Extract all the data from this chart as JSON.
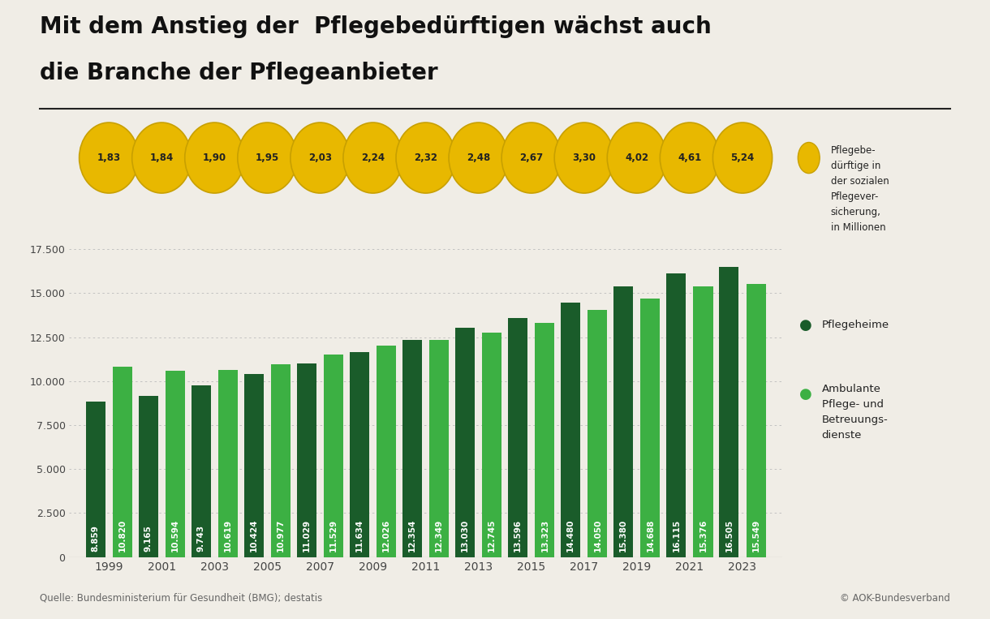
{
  "title_line1": "Mit dem Anstieg der  Pflegebedürftigen wächst auch",
  "title_line2": "die Branche der Pflegeanbieter",
  "background_color": "#f0ede6",
  "years": [
    1999,
    2001,
    2003,
    2005,
    2007,
    2009,
    2011,
    2013,
    2015,
    2017,
    2019,
    2021,
    2023
  ],
  "pflegeheime": [
    8859,
    9165,
    9743,
    10424,
    11029,
    11634,
    12354,
    13030,
    13596,
    14480,
    15380,
    16115,
    16505
  ],
  "ambulante": [
    10820,
    10594,
    10619,
    10977,
    11529,
    12026,
    12349,
    12745,
    13323,
    14050,
    14688,
    15376,
    15549
  ],
  "pflegebeduerftige": [
    1.83,
    1.84,
    1.9,
    1.95,
    2.03,
    2.24,
    2.32,
    2.48,
    2.67,
    3.3,
    4.02,
    4.61,
    5.24
  ],
  "color_pflegeheime": "#1a5c2a",
  "color_ambulante": "#3cb043",
  "color_bubble": "#e8b800",
  "color_bubble_border": "#c8a000",
  "ylim": [
    0,
    19000
  ],
  "yticks": [
    0,
    2500,
    5000,
    7500,
    10000,
    12500,
    15000,
    17500
  ],
  "source_left": "Quelle: Bundesministerium für Gesundheit (BMG); destatis",
  "source_right": "© AOK-Bundesverband",
  "legend_pflegeheime": "Pflegeheime",
  "legend_ambulante": "Ambulante\nPflege- und\nBetreuungs-\ndienste",
  "legend_bubble": "Pflegebe-\ndürftige in\nder sozialen\nPflegever-\nsicherung,\nin Millionen"
}
